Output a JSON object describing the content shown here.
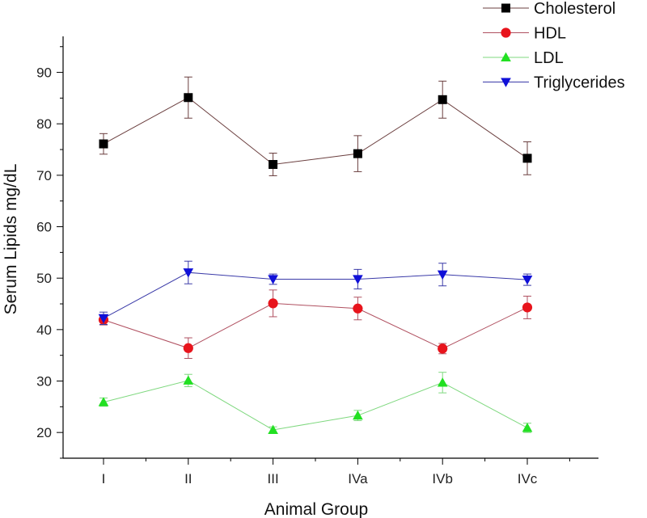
{
  "chart_data": {
    "type": "line",
    "title": "",
    "xlabel": "Animal Group",
    "ylabel": "Serum Lipids mg/dL",
    "categories": [
      "I",
      "II",
      "III",
      "IVa",
      "IVb",
      "IVc"
    ],
    "ylim": [
      15,
      97
    ],
    "yticks": [
      20,
      30,
      40,
      50,
      60,
      70,
      80,
      90
    ],
    "error_bars": true,
    "legend_position": "top-right",
    "series": [
      {
        "name": "Cholesterol",
        "color": "#000000",
        "line_color": "#6b3f3f",
        "marker": "square",
        "values": [
          76.1,
          85.1,
          72.1,
          74.2,
          84.7,
          73.3
        ],
        "errors": [
          2.0,
          4.0,
          2.2,
          3.5,
          3.6,
          3.2
        ]
      },
      {
        "name": "HDL",
        "color": "#e8141c",
        "line_color": "#b05060",
        "marker": "circle",
        "values": [
          41.9,
          36.4,
          45.1,
          44.1,
          36.3,
          44.3
        ],
        "errors": [
          1.0,
          2.0,
          2.6,
          2.2,
          1.0,
          2.2
        ]
      },
      {
        "name": "LDL",
        "color": "#22e022",
        "line_color": "#7fd87f",
        "marker": "triangle-up",
        "values": [
          25.9,
          30.1,
          20.5,
          23.3,
          29.7,
          20.9
        ],
        "errors": [
          0.8,
          1.2,
          0.6,
          1.0,
          2.0,
          0.9
        ]
      },
      {
        "name": "Triglycerides",
        "color": "#1010d8",
        "line_color": "#3a3aa8",
        "marker": "triangle-down",
        "values": [
          42.2,
          51.1,
          49.8,
          49.8,
          50.7,
          49.7
        ],
        "errors": [
          1.2,
          2.2,
          1.0,
          1.9,
          2.2,
          1.1
        ]
      }
    ]
  }
}
